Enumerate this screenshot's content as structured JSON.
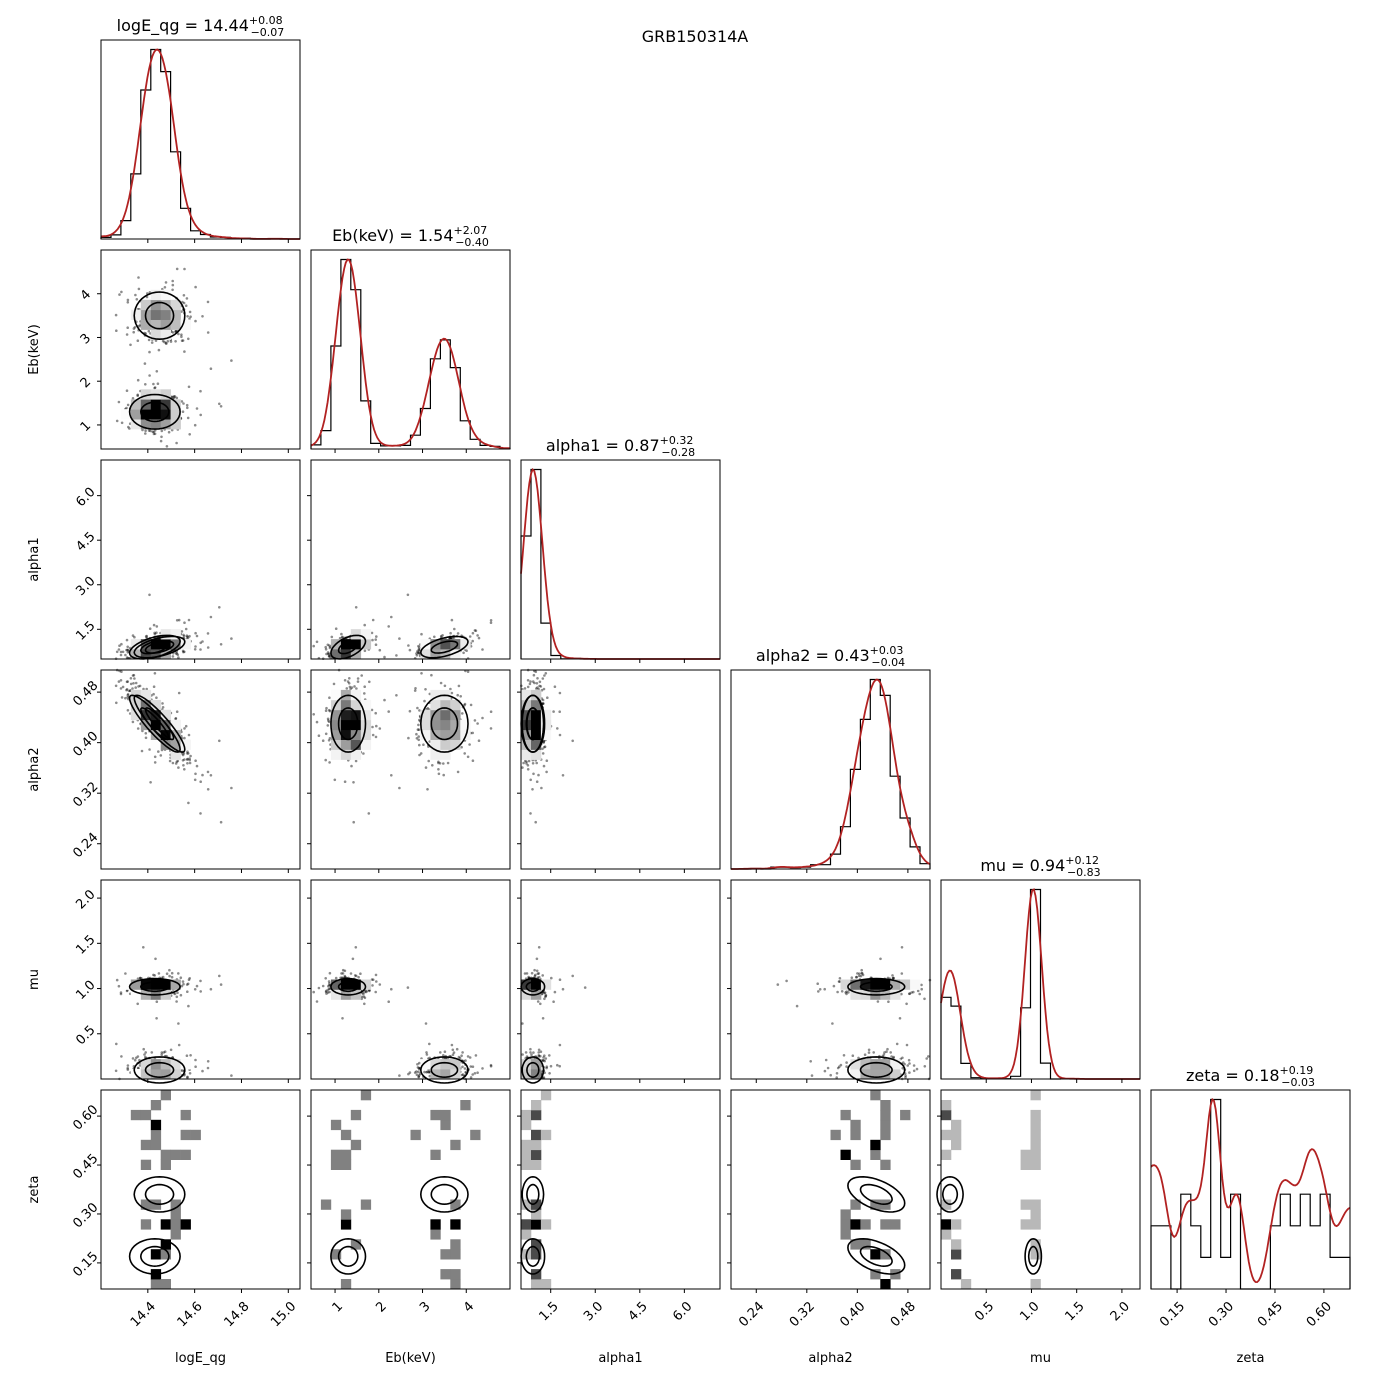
{
  "figure": {
    "title": "GRB150314A"
  },
  "chart_data": {
    "type": "scatter",
    "title": "GRB150314A",
    "parameters": [
      {
        "name": "logE_qg",
        "median": "14.44",
        "plus": "+0.08",
        "minus": "−0.07",
        "range": [
          14.2,
          15.05
        ],
        "ticks": [
          14.4,
          14.6,
          14.8,
          15.0
        ],
        "tick_labels": [
          "14.4",
          "14.6",
          "14.8",
          "15.0"
        ]
      },
      {
        "name": "Eb(keV)",
        "median": "1.54",
        "plus": "+2.07",
        "minus": "−0.40",
        "range": [
          0.45,
          5.0
        ],
        "ticks": [
          1,
          2,
          3,
          4
        ],
        "tick_labels": [
          "1",
          "2",
          "3",
          "4"
        ]
      },
      {
        "name": "alpha1",
        "median": "0.87",
        "plus": "+0.32",
        "minus": "−0.28",
        "range": [
          0.5,
          7.2
        ],
        "ticks": [
          1.5,
          3.0,
          4.5,
          6.0
        ],
        "tick_labels": [
          "1.5",
          "3.0",
          "4.5",
          "6.0"
        ]
      },
      {
        "name": "alpha2",
        "median": "0.43",
        "plus": "+0.03",
        "minus": "−0.04",
        "range": [
          0.2,
          0.515
        ],
        "ticks": [
          0.24,
          0.32,
          0.4,
          0.48
        ],
        "tick_labels": [
          "0.24",
          "0.32",
          "0.40",
          "0.48"
        ]
      },
      {
        "name": "mu",
        "median": "0.94",
        "plus": "+0.12",
        "minus": "−0.83",
        "range": [
          0.0,
          2.2
        ],
        "ticks": [
          0.5,
          1.0,
          1.5,
          2.0
        ],
        "tick_labels": [
          "0.5",
          "1.0",
          "1.5",
          "2.0"
        ]
      },
      {
        "name": "zeta",
        "median": "0.18",
        "plus": "+0.19",
        "minus": "−0.03",
        "range": [
          0.07,
          0.68
        ],
        "ticks": [
          0.15,
          0.3,
          0.45,
          0.6
        ],
        "tick_labels": [
          "0.15",
          "0.30",
          "0.45",
          "0.60"
        ]
      }
    ],
    "modes": [
      {
        "weight": 0.6,
        "mean": [
          14.43,
          1.3,
          0.9,
          0.43,
          1.02,
          0.17
        ],
        "sd": [
          0.06,
          0.22,
          0.22,
          0.025,
          0.05,
          0.03
        ]
      },
      {
        "weight": 0.4,
        "mean": [
          14.45,
          3.5,
          0.9,
          0.43,
          0.1,
          0.36
        ],
        "sd": [
          0.06,
          0.3,
          0.2,
          0.025,
          0.08,
          0.03
        ]
      }
    ],
    "correlations": [
      {
        "pair": [
          "logE_qg",
          "alpha2"
        ],
        "value": -0.9
      },
      {
        "pair": [
          "logE_qg",
          "alpha1"
        ],
        "value": 0.5
      },
      {
        "pair": [
          "Eb(keV)",
          "alpha1"
        ],
        "value": 0.5
      },
      {
        "pair": [
          "alpha2",
          "zeta"
        ],
        "value": -0.5
      }
    ],
    "histogram_bins": 20,
    "n_samples": 1800,
    "colors": {
      "histogram": "#000000",
      "kde": "#b22222",
      "points": "#000000"
    },
    "grid": false
  }
}
